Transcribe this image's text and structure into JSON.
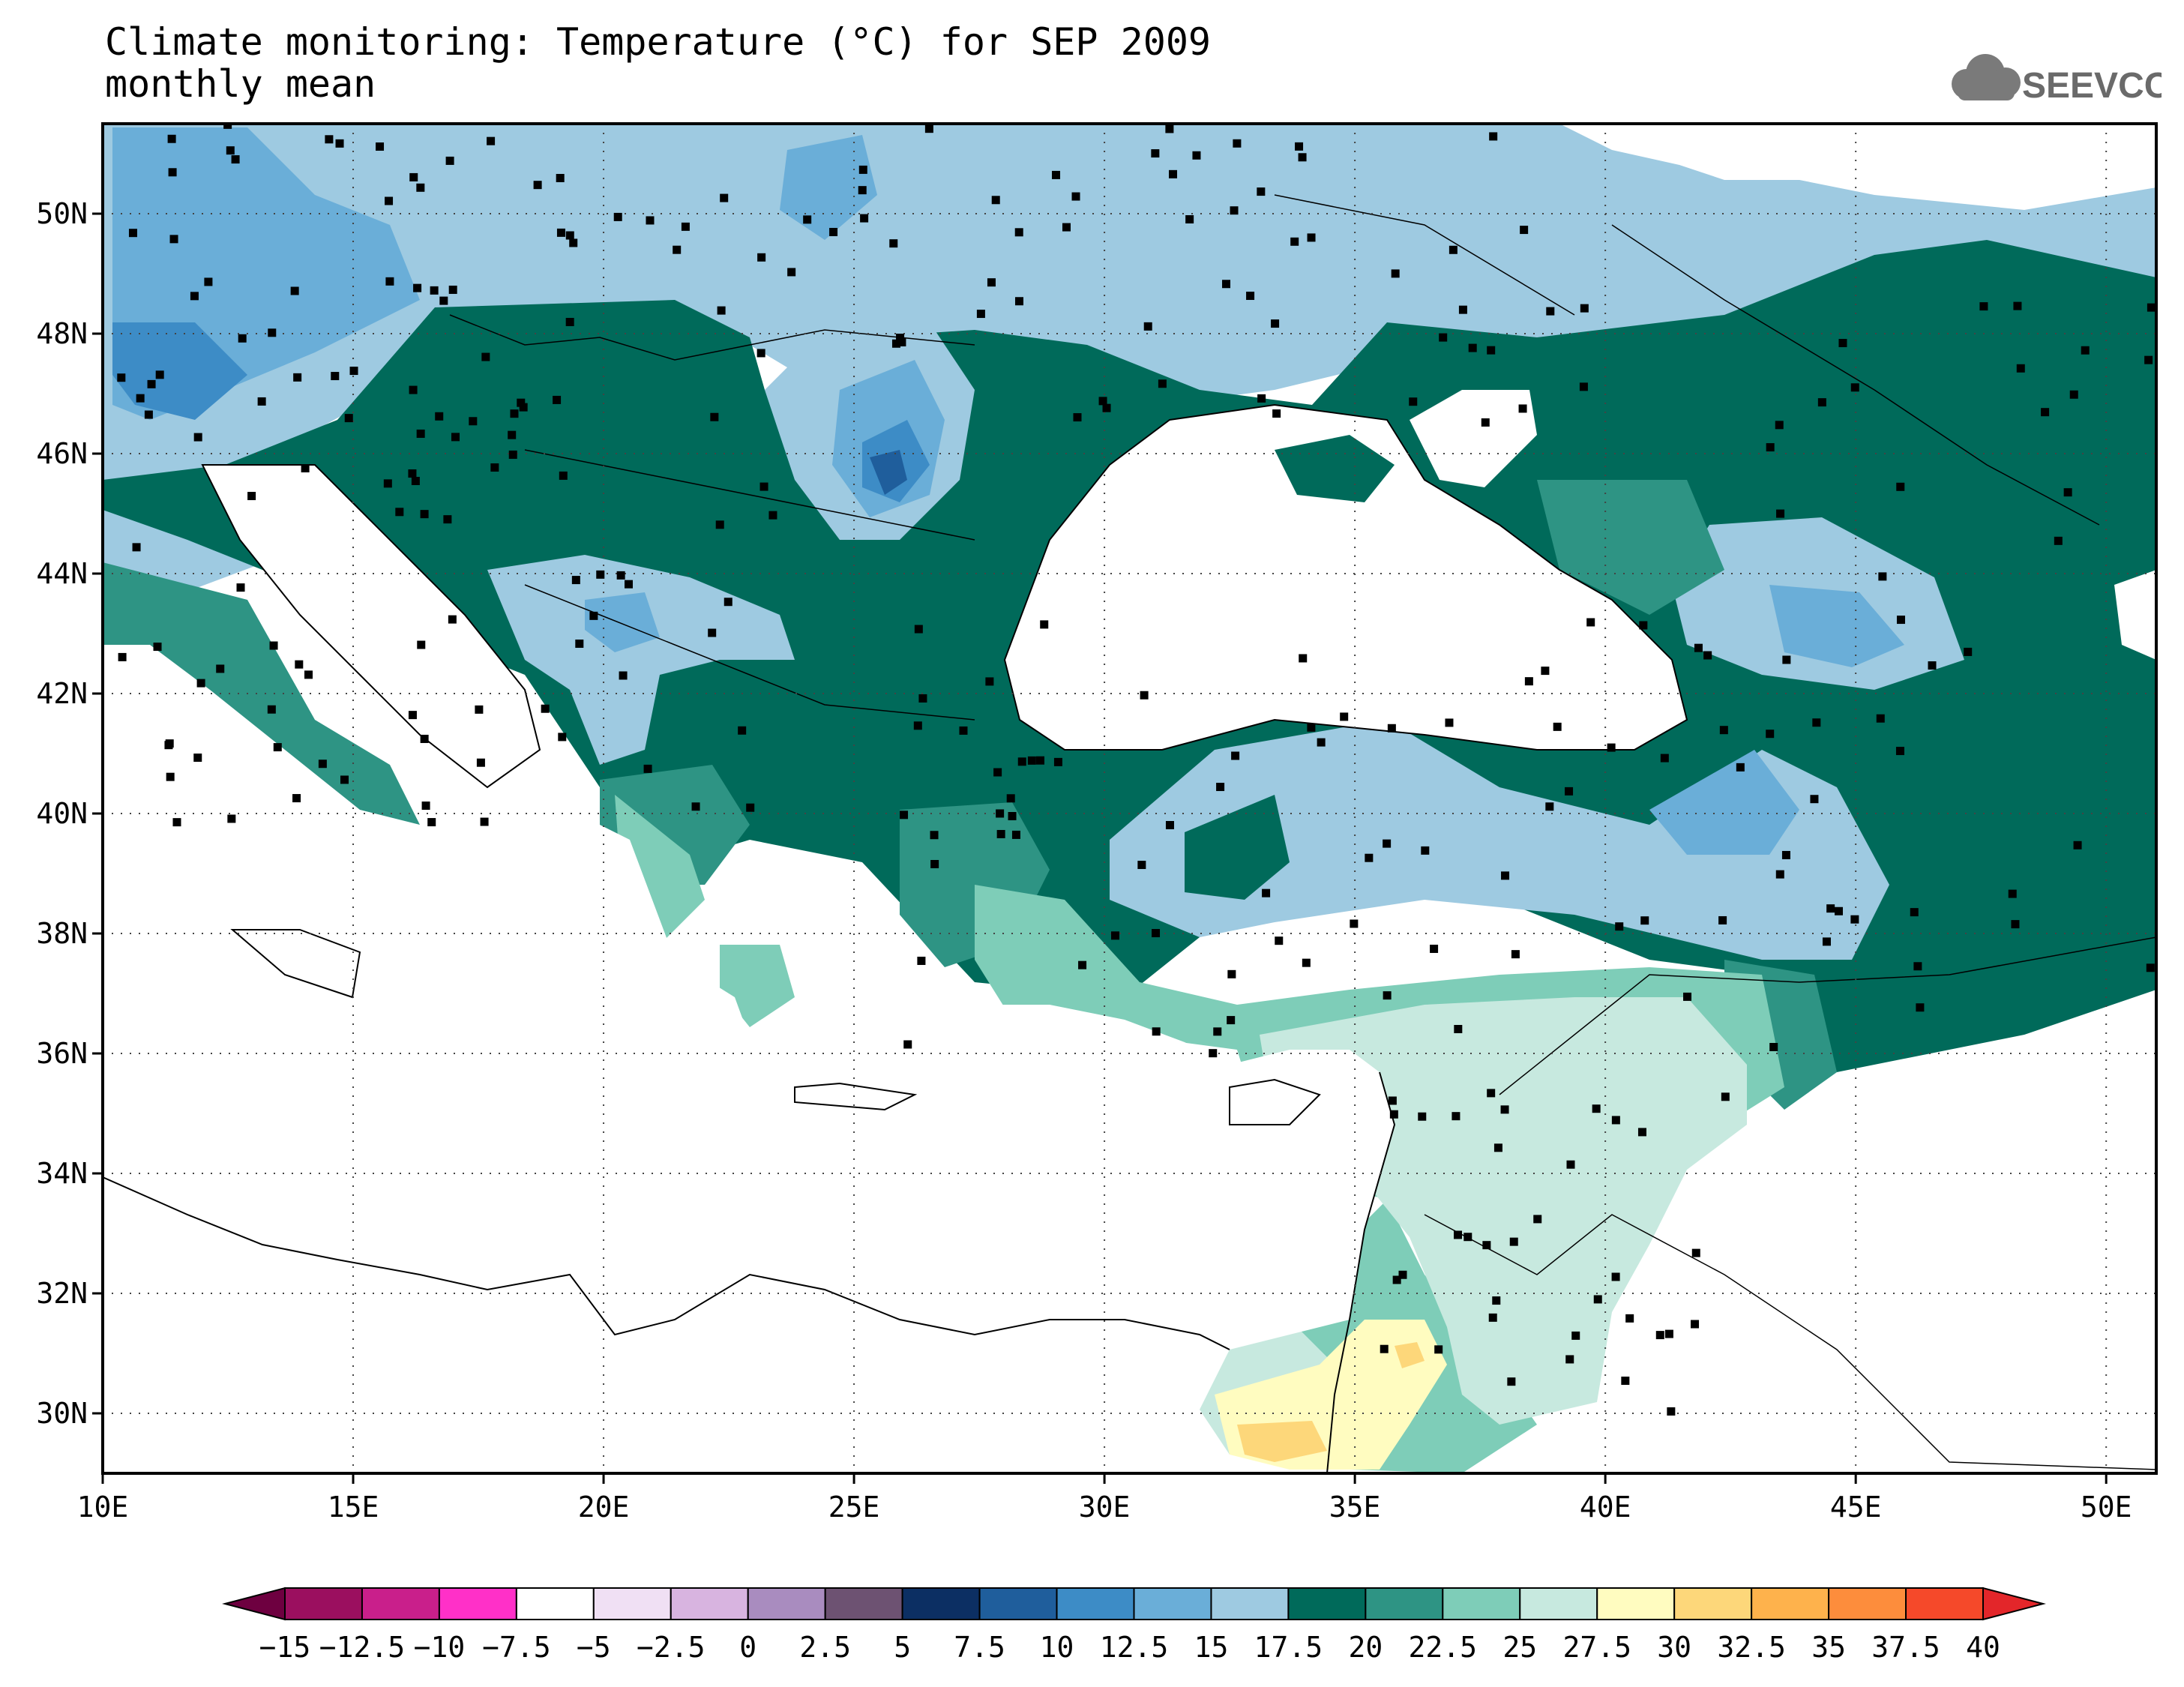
{
  "title": {
    "line1": "Climate monitoring: Temperature (°C) for SEP 2009",
    "line2": "monthly mean"
  },
  "logo": {
    "text": "SEEVCCC",
    "icon": "cloud-icon"
  },
  "map": {
    "lon_range": [
      10,
      51
    ],
    "lat_range": [
      29,
      51.5
    ],
    "lon_ticks": [
      "10E",
      "15E",
      "20E",
      "25E",
      "30E",
      "35E",
      "40E",
      "45E",
      "50E"
    ],
    "lat_ticks": [
      "30N",
      "32N",
      "34N",
      "36N",
      "38N",
      "40N",
      "42N",
      "44N",
      "46N",
      "48N",
      "50N"
    ],
    "gridlines": "dotted",
    "station_marker": "black-square"
  },
  "colorbar": {
    "labels": [
      "−15",
      "−12.5",
      "−10",
      "−7.5",
      "−5",
      "−2.5",
      "0",
      "2.5",
      "5",
      "7.5",
      "10",
      "12.5",
      "15",
      "17.5",
      "20",
      "22.5",
      "25",
      "27.5",
      "30",
      "32.5",
      "35",
      "37.5",
      "40"
    ],
    "colors": [
      "#6e0040",
      "#9b0f5f",
      "#c91f8b",
      "#ff30c8",
      "#ffffff",
      "#f0e0f4",
      "#d8b4e0",
      "#a98cbf",
      "#6d5272",
      "#0c2f63",
      "#1f5e9c",
      "#3d8cc6",
      "#6aaed8",
      "#9ecae1",
      "#006a5a",
      "#2e9484",
      "#7ecdb8",
      "#c7e9df",
      "#fffcc0",
      "#fdd77a",
      "#feb24c",
      "#fd8d3c",
      "#f5492a",
      "#e3262a"
    ],
    "arrows": "both"
  }
}
